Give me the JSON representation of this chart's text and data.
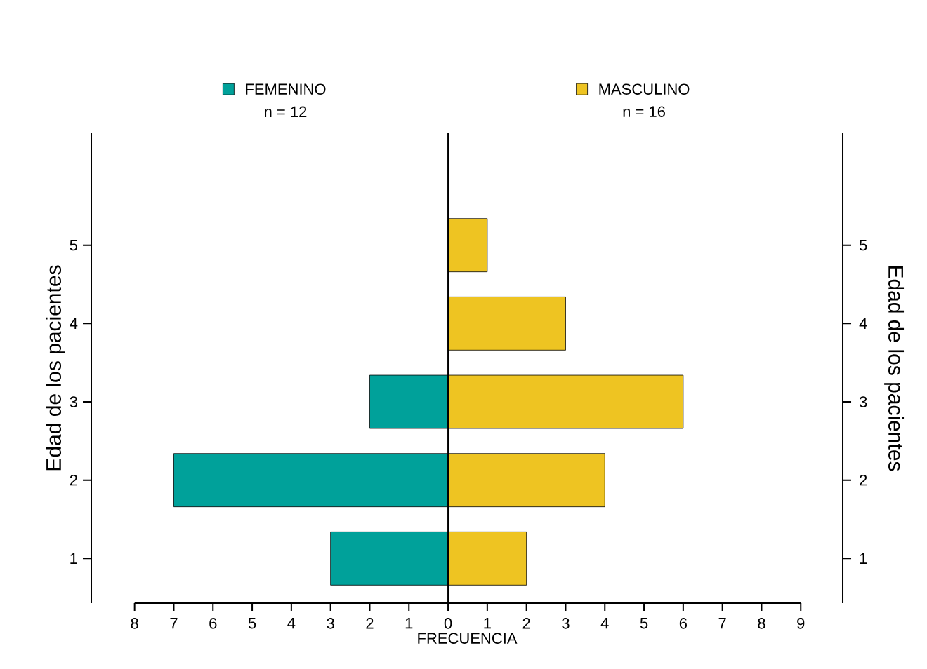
{
  "chart_data": {
    "type": "bar",
    "orientation": "horizontal",
    "xlabel": "FRECUENCIA",
    "ylabel": "Edad de los pacientes",
    "y2label": "Edad de los pacientes",
    "categories": [
      "5",
      "4",
      "3",
      "2",
      "1"
    ],
    "series": [
      {
        "name": "FEMENINO",
        "color": "#00a19a",
        "values": [
          null,
          null,
          -2,
          -7,
          -3
        ]
      },
      {
        "name": "MASCULINO",
        "color": "#eec422",
        "values": [
          1,
          3,
          6,
          4,
          2
        ]
      }
    ],
    "annotations": [
      "n = 12",
      "n = 16"
    ],
    "ref_lines": [
      {
        "axis": "x",
        "value": 0,
        "color": "#000000"
      }
    ],
    "xlim": [
      -8,
      9
    ],
    "xticks": [
      {
        "value": -8,
        "label": "8"
      },
      {
        "value": -7,
        "label": "7"
      },
      {
        "value": -6,
        "label": "6"
      },
      {
        "value": -5,
        "label": "5"
      },
      {
        "value": -4,
        "label": "4"
      },
      {
        "value": -3,
        "label": "3"
      },
      {
        "value": -2,
        "label": "2"
      },
      {
        "value": -1,
        "label": "1"
      },
      0,
      1,
      2,
      3,
      4,
      5,
      6,
      7,
      8,
      9
    ],
    "stacked": true,
    "legend": "top"
  }
}
